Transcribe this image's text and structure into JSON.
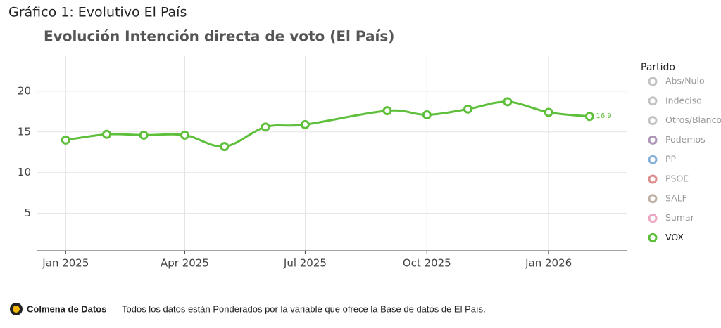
{
  "page_title": "Gráfico 1: Evolutivo El País",
  "footer": {
    "brand": "Colmena de Datos",
    "note": "Todos los datos están Ponderados por la variable que ofrece la Base de datos de El País."
  },
  "chart_data": {
    "type": "line",
    "title": "Evolución Intención directa de voto (El País)",
    "x": [
      "2025-01",
      "2025-02",
      "2025-03",
      "2025-04",
      "2025-05",
      "2025-06",
      "2025-07",
      "2025-09",
      "2025-10",
      "2025-11",
      "2025-12",
      "2026-01",
      "2026-02"
    ],
    "series": [
      {
        "name": "VOX",
        "color": "#5dbf3a",
        "values": [
          14.0,
          14.7,
          14.6,
          14.6,
          13.2,
          15.6,
          15.9,
          17.6,
          17.1,
          17.8,
          18.7,
          17.4,
          16.9
        ]
      }
    ],
    "legend_title": "Partido",
    "hidden_series": [
      {
        "name": "Abs/Nulo",
        "color": "#bdbdbd"
      },
      {
        "name": "Indeciso",
        "color": "#bdbdbd"
      },
      {
        "name": "Otros/Blanco",
        "color": "#bdbdbd"
      },
      {
        "name": "Podemos",
        "color": "#a58bb0"
      },
      {
        "name": "PP",
        "color": "#7ca9d6"
      },
      {
        "name": "PSOE",
        "color": "#d98080"
      },
      {
        "name": "SALF",
        "color": "#b8aa9e"
      },
      {
        "name": "Sumar",
        "color": "#ec9fc0"
      }
    ],
    "xlim": [
      "2024-12-10",
      "2026-03-01"
    ],
    "xticks": [
      {
        "value": "2025-01",
        "label": "Jan 2025"
      },
      {
        "value": "2025-04",
        "label": "Apr 2025"
      },
      {
        "value": "2025-07",
        "label": "Jul 2025"
      },
      {
        "value": "2025-10",
        "label": "Oct 2025"
      },
      {
        "value": "2026-01",
        "label": "Jan 2026"
      }
    ],
    "ylim": [
      0.4,
      24.3
    ],
    "yticks": [
      5,
      10,
      15,
      20
    ],
    "grid": true
  }
}
